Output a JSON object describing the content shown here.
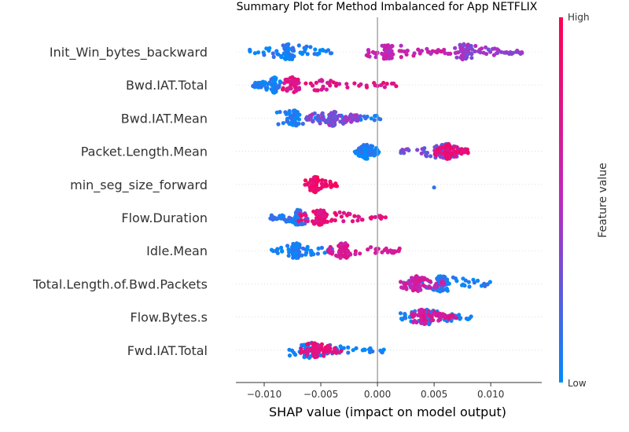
{
  "chart_data": {
    "type": "scatter",
    "title": "Summary Plot for Method Imbalanced for App NETFLIX",
    "xlabel": "SHAP value (impact on model output)",
    "xlim": [
      -0.0125,
      0.0145
    ],
    "xticks": [
      -0.01,
      -0.005,
      0.0,
      0.005,
      0.01
    ],
    "xtick_labels": [
      "−0.010",
      "−0.005",
      "0.000",
      "0.005",
      "0.010"
    ],
    "colorbar": {
      "label": "Feature value",
      "high_label": "High",
      "low_label": "Low",
      "high_color": "#ff0052",
      "low_color": "#008bfb"
    },
    "features": [
      {
        "name": "Init_Win_bytes_backward",
        "clusters": [
          {
            "from": -0.0115,
            "to": -0.004,
            "peak": -0.0078,
            "value": 0.05
          },
          {
            "from": -0.001,
            "to": 0.0065,
            "peak": 0.001,
            "value": 0.55
          },
          {
            "from": 0.0065,
            "to": 0.013,
            "peak": 0.0077,
            "value": 0.4
          }
        ]
      },
      {
        "name": "Bwd.IAT.Total",
        "clusters": [
          {
            "from": -0.011,
            "to": -0.0085,
            "peak": -0.0091,
            "value": 0.05
          },
          {
            "from": -0.0085,
            "to": 0.002,
            "peak": -0.0075,
            "value": 0.75
          }
        ]
      },
      {
        "name": "Bwd.IAT.Mean",
        "clusters": [
          {
            "from": -0.009,
            "to": 0.0003,
            "peak": -0.0075,
            "value": 0.05
          },
          {
            "from": -0.0065,
            "to": -0.0015,
            "peak": -0.004,
            "value": 0.35
          }
        ]
      },
      {
        "name": "Packet.Length.Mean",
        "clusters": [
          {
            "from": -0.002,
            "to": 0.0002,
            "peak": -0.001,
            "value": 0.05
          },
          {
            "from": 0.002,
            "to": 0.0078,
            "peak": 0.0058,
            "value": 0.3
          },
          {
            "from": 0.005,
            "to": 0.008,
            "peak": 0.0062,
            "value": 0.8
          }
        ]
      },
      {
        "name": "min_seg_size_forward",
        "clusters": [
          {
            "from": -0.0065,
            "to": -0.0035,
            "peak": -0.0055,
            "value": 0.9
          },
          {
            "from": 0.005,
            "to": 0.005,
            "peak": 0.005,
            "value": 0.05
          }
        ]
      },
      {
        "name": "Flow.Duration",
        "clusters": [
          {
            "from": -0.0095,
            "to": -0.006,
            "peak": -0.007,
            "value": 0.1
          },
          {
            "from": -0.007,
            "to": 0.0008,
            "peak": -0.005,
            "value": 0.8
          }
        ]
      },
      {
        "name": "Idle.Mean",
        "clusters": [
          {
            "from": -0.0095,
            "to": -0.004,
            "peak": -0.0072,
            "value": 0.05
          },
          {
            "from": -0.0045,
            "to": 0.002,
            "peak": -0.003,
            "value": 0.7
          }
        ]
      },
      {
        "name": "Total.Length.of.Bwd.Packets",
        "clusters": [
          {
            "from": 0.0018,
            "to": 0.01,
            "peak": 0.0057,
            "value": 0.05
          },
          {
            "from": 0.002,
            "to": 0.006,
            "peak": 0.0035,
            "value": 0.6
          }
        ]
      },
      {
        "name": "Flow.Bytes.s",
        "clusters": [
          {
            "from": 0.002,
            "to": 0.0083,
            "peak": 0.0043,
            "value": 0.05
          },
          {
            "from": 0.003,
            "to": 0.007,
            "peak": 0.004,
            "value": 0.7
          }
        ]
      },
      {
        "name": "Fwd.IAT.Total",
        "clusters": [
          {
            "from": -0.008,
            "to": 0.0007,
            "peak": -0.006,
            "value": 0.05
          },
          {
            "from": -0.007,
            "to": -0.003,
            "peak": -0.0055,
            "value": 0.75
          }
        ]
      }
    ]
  }
}
